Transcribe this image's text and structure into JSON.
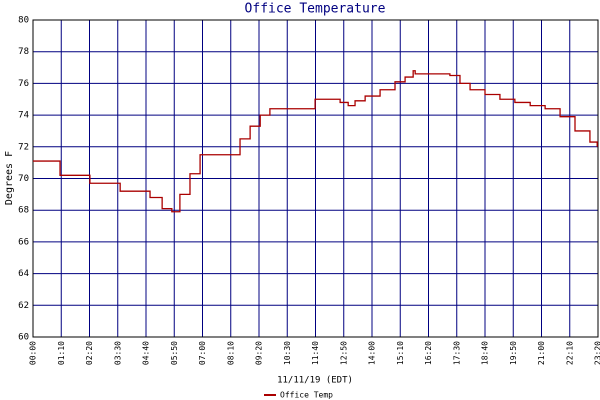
{
  "chart_data": {
    "type": "line",
    "title": "Office Temperature",
    "x_label": "11/11/19 (EDT)",
    "y_label": "Degrees F",
    "step": true,
    "grid": true,
    "legend": "bottom",
    "xlim": [
      0,
      1400
    ],
    "ylim": [
      60,
      80
    ],
    "yticks": [
      60,
      62,
      64,
      66,
      68,
      70,
      72,
      74,
      76,
      78,
      80
    ],
    "xticks": [
      {
        "value": 0,
        "label": "00:00"
      },
      {
        "value": 70,
        "label": "01:10"
      },
      {
        "value": 140,
        "label": "02:20"
      },
      {
        "value": 210,
        "label": "03:30"
      },
      {
        "value": 280,
        "label": "04:40"
      },
      {
        "value": 350,
        "label": "05:50"
      },
      {
        "value": 420,
        "label": "07:00"
      },
      {
        "value": 490,
        "label": "08:10"
      },
      {
        "value": 560,
        "label": "09:20"
      },
      {
        "value": 630,
        "label": "10:30"
      },
      {
        "value": 700,
        "label": "11:40"
      },
      {
        "value": 770,
        "label": "12:50"
      },
      {
        "value": 840,
        "label": "14:00"
      },
      {
        "value": 910,
        "label": "15:10"
      },
      {
        "value": 980,
        "label": "16:20"
      },
      {
        "value": 1050,
        "label": "17:30"
      },
      {
        "value": 1120,
        "label": "18:40"
      },
      {
        "value": 1190,
        "label": "19:50"
      },
      {
        "value": 1260,
        "label": "21:00"
      },
      {
        "value": 1330,
        "label": "22:10"
      },
      {
        "value": 1400,
        "label": "23:20"
      }
    ],
    "series": [
      {
        "name": "Office Temp",
        "color": "#aa0000",
        "x": [
          0,
          67,
          141,
          216,
          290,
          320,
          344,
          364,
          389,
          414,
          483,
          513,
          538,
          563,
          587,
          662,
          699,
          736,
          761,
          781,
          798,
          823,
          860,
          897,
          922,
          942,
          947,
          1001,
          1033,
          1058,
          1083,
          1120,
          1157,
          1194,
          1232,
          1269,
          1306,
          1343,
          1380,
          1398
        ],
        "values": [
          71.1,
          70.2,
          69.7,
          69.2,
          68.8,
          68.1,
          67.9,
          69.0,
          70.3,
          71.5,
          71.5,
          72.5,
          73.3,
          74.0,
          74.4,
          74.4,
          75.0,
          75.0,
          74.8,
          74.6,
          74.9,
          75.2,
          75.6,
          76.1,
          76.4,
          76.8,
          76.6,
          76.6,
          76.5,
          76.0,
          75.6,
          75.3,
          75.0,
          74.8,
          74.6,
          74.4,
          73.9,
          73.0,
          72.3,
          72.0
        ]
      }
    ]
  }
}
